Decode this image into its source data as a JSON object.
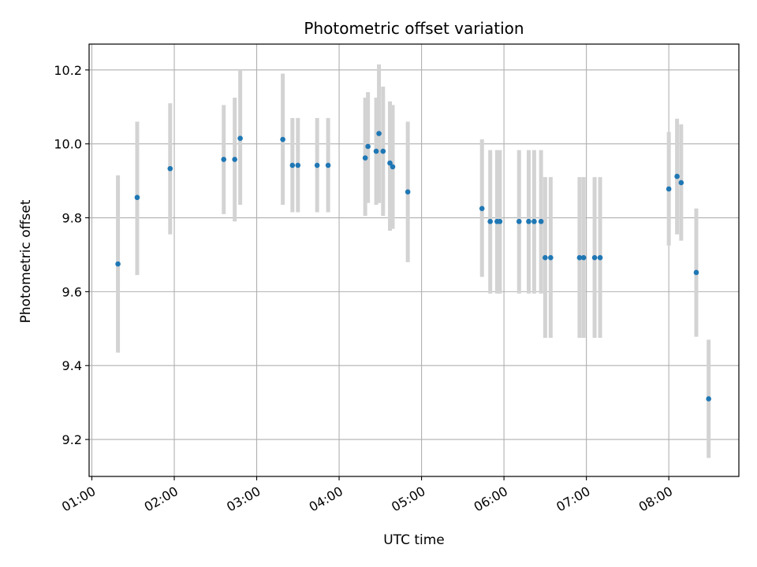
{
  "chart_data": {
    "type": "scatter",
    "title": "Photometric offset variation",
    "xlabel": "UTC time",
    "ylabel": "Photometric offset",
    "xlim": [
      "00:58",
      "08:51"
    ],
    "ylim": [
      9.1,
      10.27
    ],
    "x_ticks": [
      "01:00",
      "02:00",
      "03:00",
      "04:00",
      "05:00",
      "06:00",
      "07:00",
      "08:00"
    ],
    "y_ticks": [
      9.2,
      9.4,
      9.6,
      9.8,
      10.0,
      10.2
    ],
    "grid": true,
    "marker_color": "#1f77b4",
    "errorbar_color": "#d3d3d3",
    "points": [
      {
        "x": "01:19",
        "y": 9.675,
        "lo": 9.435,
        "hi": 9.915
      },
      {
        "x": "01:33",
        "y": 9.855,
        "lo": 9.645,
        "hi": 10.06
      },
      {
        "x": "01:57",
        "y": 9.933,
        "lo": 9.755,
        "hi": 10.11
      },
      {
        "x": "02:36",
        "y": 9.958,
        "lo": 9.81,
        "hi": 10.105
      },
      {
        "x": "02:44",
        "y": 9.958,
        "lo": 9.79,
        "hi": 10.125
      },
      {
        "x": "02:48",
        "y": 10.015,
        "lo": 9.835,
        "hi": 10.2
      },
      {
        "x": "03:19",
        "y": 10.012,
        "lo": 9.835,
        "hi": 10.19
      },
      {
        "x": "03:26",
        "y": 9.942,
        "lo": 9.815,
        "hi": 10.07
      },
      {
        "x": "03:30",
        "y": 9.942,
        "lo": 9.815,
        "hi": 10.07
      },
      {
        "x": "03:44",
        "y": 9.942,
        "lo": 9.815,
        "hi": 10.07
      },
      {
        "x": "03:52",
        "y": 9.942,
        "lo": 9.815,
        "hi": 10.07
      },
      {
        "x": "04:19",
        "y": 9.962,
        "lo": 9.805,
        "hi": 10.125
      },
      {
        "x": "04:21",
        "y": 9.993,
        "lo": 9.84,
        "hi": 10.14
      },
      {
        "x": "04:27",
        "y": 9.98,
        "lo": 9.835,
        "hi": 10.125
      },
      {
        "x": "04:29",
        "y": 10.028,
        "lo": 9.84,
        "hi": 10.215
      },
      {
        "x": "04:32",
        "y": 9.98,
        "lo": 9.805,
        "hi": 10.155
      },
      {
        "x": "04:37",
        "y": 9.948,
        "lo": 9.765,
        "hi": 10.115
      },
      {
        "x": "04:39",
        "y": 9.938,
        "lo": 9.77,
        "hi": 10.105
      },
      {
        "x": "04:50",
        "y": 9.87,
        "lo": 9.68,
        "hi": 10.06
      },
      {
        "x": "05:44",
        "y": 9.825,
        "lo": 9.64,
        "hi": 10.012
      },
      {
        "x": "05:50",
        "y": 9.79,
        "lo": 9.595,
        "hi": 9.983
      },
      {
        "x": "05:55",
        "y": 9.79,
        "lo": 9.595,
        "hi": 9.983
      },
      {
        "x": "05:57",
        "y": 9.79,
        "lo": 9.595,
        "hi": 9.983
      },
      {
        "x": "06:11",
        "y": 9.79,
        "lo": 9.595,
        "hi": 9.983
      },
      {
        "x": "06:18",
        "y": 9.79,
        "lo": 9.595,
        "hi": 9.983
      },
      {
        "x": "06:22",
        "y": 9.79,
        "lo": 9.595,
        "hi": 9.983
      },
      {
        "x": "06:27",
        "y": 9.79,
        "lo": 9.595,
        "hi": 9.983
      },
      {
        "x": "06:30",
        "y": 9.692,
        "lo": 9.475,
        "hi": 9.91
      },
      {
        "x": "06:34",
        "y": 9.692,
        "lo": 9.475,
        "hi": 9.91
      },
      {
        "x": "06:55",
        "y": 9.692,
        "lo": 9.475,
        "hi": 9.91
      },
      {
        "x": "06:58",
        "y": 9.692,
        "lo": 9.475,
        "hi": 9.91
      },
      {
        "x": "07:06",
        "y": 9.692,
        "lo": 9.475,
        "hi": 9.91
      },
      {
        "x": "07:10",
        "y": 9.692,
        "lo": 9.475,
        "hi": 9.91
      },
      {
        "x": "08:00",
        "y": 9.878,
        "lo": 9.725,
        "hi": 10.032
      },
      {
        "x": "08:06",
        "y": 9.912,
        "lo": 9.755,
        "hi": 10.068
      },
      {
        "x": "08:09",
        "y": 9.895,
        "lo": 9.738,
        "hi": 10.053
      },
      {
        "x": "08:20",
        "y": 9.652,
        "lo": 9.478,
        "hi": 9.825
      },
      {
        "x": "08:29",
        "y": 9.31,
        "lo": 9.15,
        "hi": 9.47
      }
    ]
  }
}
